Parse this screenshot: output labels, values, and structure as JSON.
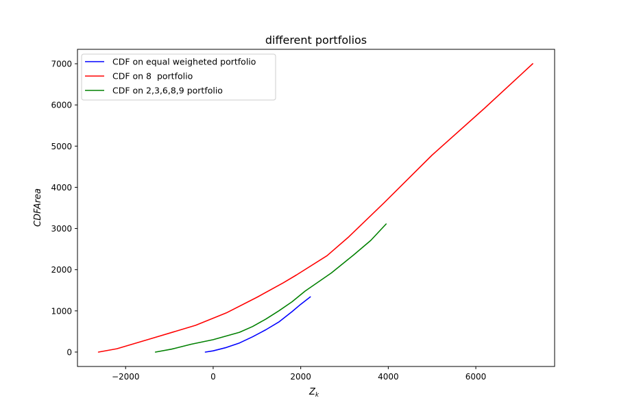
{
  "chart_data": {
    "type": "line",
    "title": "different portfolios",
    "xlabel_main": "Z",
    "xlabel_sub": "k",
    "ylabel": "CDFArea",
    "xlim": [
      -3100,
      7800
    ],
    "ylim": [
      -350,
      7350
    ],
    "xticks": [
      -2000,
      0,
      2000,
      4000,
      6000
    ],
    "xtick_labels": [
      "−2000",
      "0",
      "2000",
      "4000",
      "6000"
    ],
    "yticks": [
      0,
      1000,
      2000,
      3000,
      4000,
      5000,
      6000,
      7000
    ],
    "ytick_labels": [
      "0",
      "1000",
      "2000",
      "3000",
      "4000",
      "5000",
      "6000",
      "7000"
    ],
    "grid": false,
    "legend_position": "upper-left",
    "series": [
      {
        "name": "CDF on equal weigheted portfolio",
        "color": "#0000ff",
        "points": [
          [
            -180,
            0
          ],
          [
            0,
            30
          ],
          [
            300,
            110
          ],
          [
            600,
            220
          ],
          [
            900,
            370
          ],
          [
            1200,
            540
          ],
          [
            1500,
            730
          ],
          [
            1800,
            980
          ],
          [
            2000,
            1160
          ],
          [
            2220,
            1340
          ]
        ]
      },
      {
        "name": "CDF on 8  portfolio",
        "color": "#ff0000",
        "points": [
          [
            -2620,
            0
          ],
          [
            -2200,
            80
          ],
          [
            -1500,
            300
          ],
          [
            -400,
            650
          ],
          [
            300,
            950
          ],
          [
            1000,
            1330
          ],
          [
            1600,
            1680
          ],
          [
            1900,
            1870
          ],
          [
            2600,
            2340
          ],
          [
            3100,
            2800
          ],
          [
            3900,
            3620
          ],
          [
            5000,
            4780
          ],
          [
            6200,
            5920
          ],
          [
            7300,
            7000
          ]
        ]
      },
      {
        "name": "CDF on 2,3,6,8,9 portfolio",
        "color": "#008000",
        "points": [
          [
            -1320,
            0
          ],
          [
            -950,
            70
          ],
          [
            -500,
            190
          ],
          [
            0,
            300
          ],
          [
            600,
            480
          ],
          [
            900,
            620
          ],
          [
            1200,
            800
          ],
          [
            1500,
            1000
          ],
          [
            1800,
            1220
          ],
          [
            2100,
            1480
          ],
          [
            2700,
            1920
          ],
          [
            3200,
            2350
          ],
          [
            3600,
            2710
          ],
          [
            3950,
            3110
          ]
        ]
      }
    ]
  },
  "colors": {
    "axis": "#000000",
    "background": "#ffffff"
  }
}
